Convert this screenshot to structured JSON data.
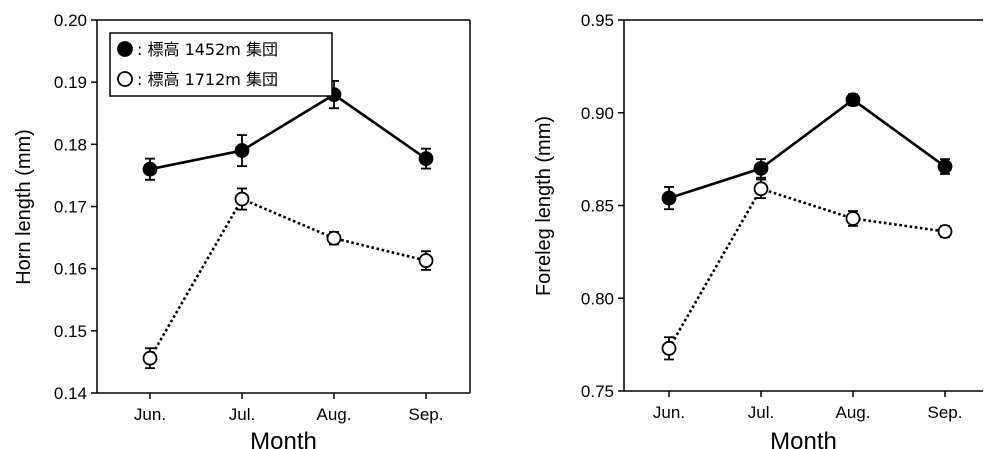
{
  "chart_data": [
    {
      "type": "line",
      "categories": [
        "Jun.",
        "Jul.",
        "Aug.",
        "Sep."
      ],
      "xlabel": "Month",
      "ylabel": "Horn length (mm)",
      "ylim": [
        0.14,
        0.2
      ],
      "yticks": [
        "0.14",
        "0.15",
        "0.16",
        "0.17",
        "0.18",
        "0.19",
        "0.20"
      ],
      "legend_position": "top-left",
      "series": [
        {
          "name": "標高 1452m 集団",
          "legend_label": ": 標高 1452m 集団",
          "marker": "filled-circle",
          "line": "solid",
          "values": [
            0.176,
            0.179,
            0.188,
            0.1777
          ],
          "errors": [
            0.0017,
            0.0025,
            0.0022,
            0.0016
          ]
        },
        {
          "name": "標高 1712m 集団",
          "legend_label": ": 標高 1712m 集団",
          "marker": "open-circle",
          "line": "dotted",
          "values": [
            0.1456,
            0.1712,
            0.1649,
            0.1613
          ],
          "errors": [
            0.0016,
            0.0017,
            0.001,
            0.0015
          ]
        }
      ]
    },
    {
      "type": "line",
      "categories": [
        "Jun.",
        "Jul.",
        "Aug.",
        "Sep."
      ],
      "xlabel": "Month",
      "ylabel": "Foreleg length (mm)",
      "ylim": [
        0.75,
        0.95
      ],
      "yticks": [
        "0.75",
        "0.80",
        "0.85",
        "0.90",
        "0.95"
      ],
      "series": [
        {
          "name": "標高 1452m 集団",
          "marker": "filled-circle",
          "line": "solid",
          "values": [
            0.854,
            0.87,
            0.907,
            0.871
          ],
          "errors": [
            0.006,
            0.005,
            0.003,
            0.004
          ]
        },
        {
          "name": "標高 1712m 集団",
          "marker": "open-circle",
          "line": "dotted",
          "values": [
            0.773,
            0.859,
            0.843,
            0.836
          ],
          "errors": [
            0.006,
            0.005,
            0.004,
            0.003
          ]
        }
      ]
    }
  ]
}
